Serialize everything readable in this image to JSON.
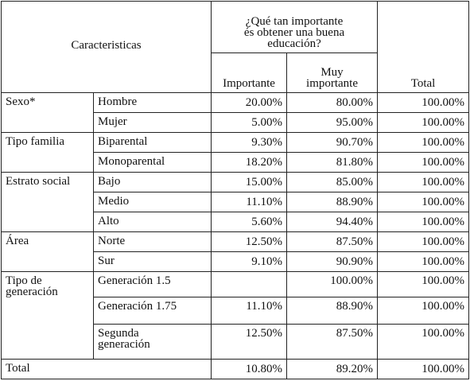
{
  "header": {
    "characteristics": "Caracteristicas",
    "question": "¿Qué tan importante\nés obtener una buena\neducación?",
    "importante": "Importante",
    "muy_importante": "Muy\nimportante",
    "total": "Total"
  },
  "groups": [
    {
      "label": "Sexo*",
      "rows": [
        {
          "label": "Hombre",
          "importante": "20.00%",
          "muy_importante": "80.00%",
          "total": "100.00%"
        },
        {
          "label": "Mujer",
          "importante": "5.00%",
          "muy_importante": "95.00%",
          "total": "100.00%"
        }
      ]
    },
    {
      "label": "Tipo familia",
      "rows": [
        {
          "label": "Biparental",
          "importante": "9.30%",
          "muy_importante": "90.70%",
          "total": "100.00%"
        },
        {
          "label": "Monoparental",
          "importante": "18.20%",
          "muy_importante": "81.80%",
          "total": "100.00%"
        }
      ]
    },
    {
      "label": "Estrato social",
      "rows": [
        {
          "label": "Bajo",
          "importante": "15.00%",
          "muy_importante": "85.00%",
          "total": "100.00%"
        },
        {
          "label": "Medio",
          "importante": "11.10%",
          "muy_importante": "88.90%",
          "total": "100.00%"
        },
        {
          "label": "Alto",
          "importante": "5.60%",
          "muy_importante": "94.40%",
          "total": "100.00%"
        }
      ]
    },
    {
      "label": "Área",
      "rows": [
        {
          "label": "Norte",
          "importante": "12.50%",
          "muy_importante": "87.50%",
          "total": "100.00%"
        },
        {
          "label": "Sur",
          "importante": "9.10%",
          "muy_importante": "90.90%",
          "total": "100.00%"
        }
      ]
    },
    {
      "label": "Tipo de\ngeneración",
      "rows": [
        {
          "label": "Generación 1.5",
          "importante": null,
          "muy_importante": "100.00%",
          "total": "100.00%"
        },
        {
          "label": "Generación 1.75",
          "importante": "11.10%",
          "muy_importante": "88.90%",
          "total": "100.00%"
        },
        {
          "label": "Segunda\ngeneración",
          "importante": "12.50%",
          "muy_importante": "87.50%",
          "total": "100.00%"
        }
      ]
    }
  ],
  "total_row": {
    "label": "Total",
    "importante": "10.80%",
    "muy_importante": "89.20%",
    "total": "100.00%"
  }
}
